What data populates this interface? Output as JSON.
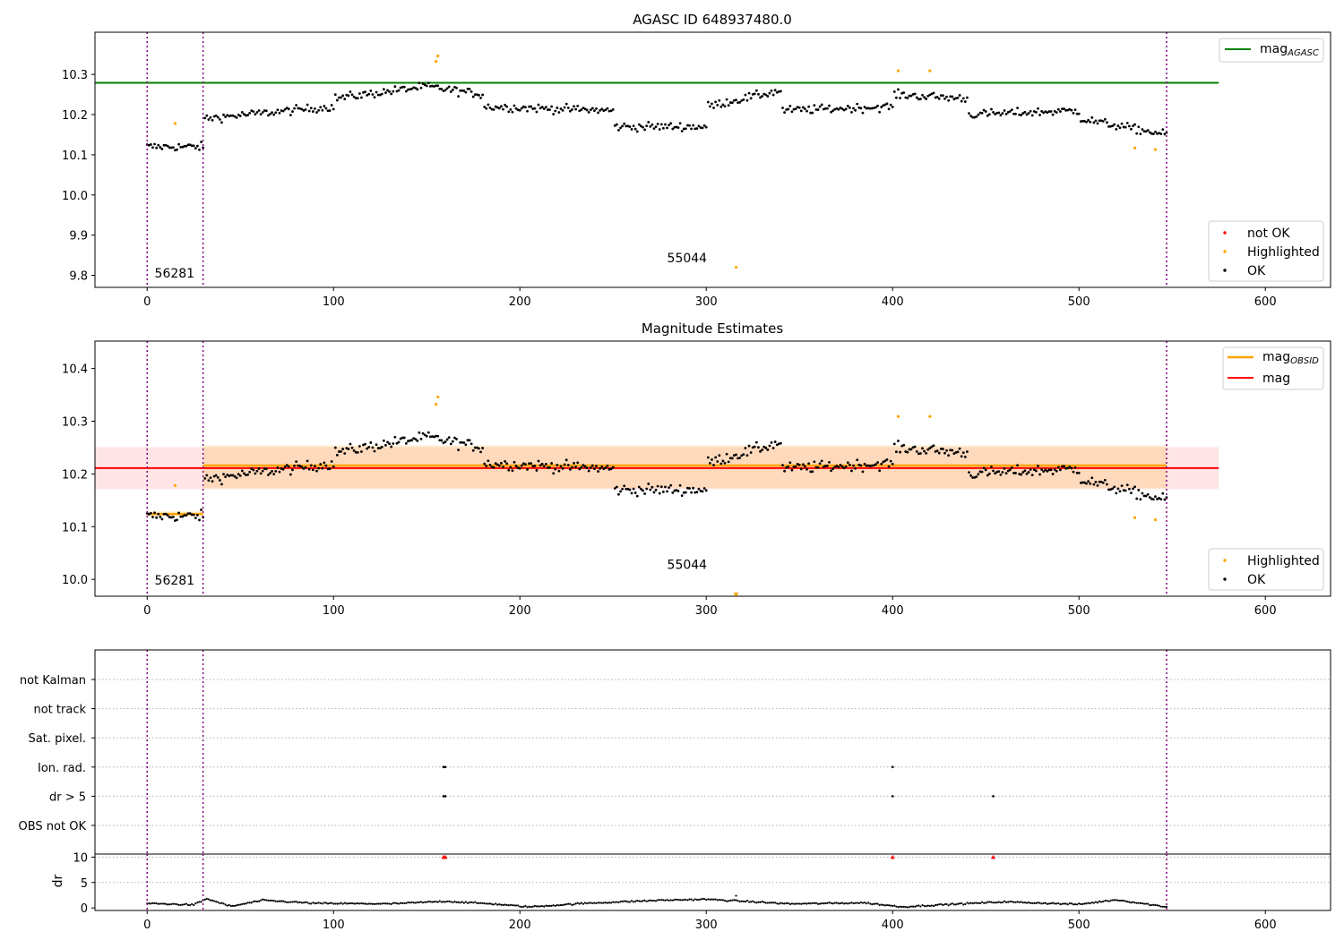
{
  "chart_data": [
    {
      "type": "scatter",
      "title": "AGASC ID 648937480.0",
      "xlabel": "",
      "ylabel": "",
      "xlim": [
        -28,
        635
      ],
      "ylim": [
        9.77,
        10.405
      ],
      "xticks": [
        0,
        100,
        200,
        300,
        400,
        500,
        600
      ],
      "yticks": [
        9.8,
        9.9,
        10.0,
        10.1,
        10.2,
        10.3
      ],
      "ytick_labels": [
        "9.8",
        "9.9",
        "10.0",
        "10.1",
        "10.2",
        "10.3"
      ],
      "obs_boundaries": [
        0,
        30,
        547
      ],
      "obs_labels": [
        {
          "text": "56281",
          "x": 4,
          "y": 9.795
        },
        {
          "text": "55044",
          "x": 279,
          "y": 9.832
        }
      ],
      "reference_lines": [
        {
          "name": "mag_AGASC",
          "y": 10.279,
          "x": [
            -28,
            575
          ],
          "color": "#008000"
        }
      ],
      "legend_top": [
        {
          "label": "mag",
          "sub": "AGASC",
          "color": "#008000",
          "kind": "line"
        }
      ],
      "legend_bottom": [
        {
          "label": "not OK",
          "color": "#ff0000",
          "kind": "dot"
        },
        {
          "label": "Highlighted",
          "color": "#ffa500",
          "kind": "dot"
        },
        {
          "label": "OK",
          "color": "#000000",
          "kind": "dot"
        }
      ],
      "highlighted_points": [
        [
          15,
          10.178
        ],
        [
          155,
          10.332
        ],
        [
          156,
          10.346
        ],
        [
          316,
          9.82
        ],
        [
          403,
          10.309
        ],
        [
          420,
          10.309
        ],
        [
          530,
          10.117
        ],
        [
          541,
          10.113
        ]
      ],
      "series_ok": {
        "x_start": 0,
        "x_end": 547,
        "segments": [
          {
            "x": [
              0,
              30
            ],
            "level": [
              10.12,
              10.12
            ]
          },
          {
            "x": [
              30,
              100
            ],
            "level": [
              10.19,
              10.22
            ]
          },
          {
            "x": [
              100,
              150
            ],
            "level": [
              10.24,
              10.27
            ]
          },
          {
            "x": [
              150,
              180
            ],
            "level": [
              10.27,
              10.25
            ]
          },
          {
            "x": [
              180,
              250
            ],
            "level": [
              10.22,
              10.21
            ]
          },
          {
            "x": [
              250,
              300
            ],
            "level": [
              10.17,
              10.17
            ]
          },
          {
            "x": [
              300,
              340
            ],
            "level": [
              10.22,
              10.26
            ]
          },
          {
            "x": [
              340,
              400
            ],
            "level": [
              10.21,
              10.22
            ]
          },
          {
            "x": [
              400,
              440
            ],
            "level": [
              10.25,
              10.24
            ]
          },
          {
            "x": [
              440,
              500
            ],
            "level": [
              10.2,
              10.21
            ]
          },
          {
            "x": [
              500,
              547
            ],
            "level": [
              10.19,
              10.15
            ]
          }
        ]
      }
    },
    {
      "type": "scatter",
      "title": "Magnitude Estimates",
      "xlabel": "",
      "ylabel": "",
      "xlim": [
        -28,
        635
      ],
      "ylim": [
        9.968,
        10.452
      ],
      "xticks": [
        0,
        100,
        200,
        300,
        400,
        500,
        600
      ],
      "yticks": [
        10.0,
        10.1,
        10.2,
        10.3,
        10.4
      ],
      "ytick_labels": [
        "10.0",
        "10.1",
        "10.2",
        "10.3",
        "10.4"
      ],
      "obs_boundaries": [
        0,
        30,
        547
      ],
      "obs_labels": [
        {
          "text": "56281",
          "x": 4,
          "y": 9.99
        },
        {
          "text": "55044",
          "x": 279,
          "y": 10.02
        }
      ],
      "mag": 10.211,
      "mag_band": [
        10.171,
        10.251
      ],
      "mag_band_x": [
        -28,
        575
      ],
      "mag_obsid": [
        {
          "x": [
            0,
            30
          ],
          "y": 10.124,
          "band": [
            10.119,
            10.129
          ]
        },
        {
          "x": [
            30,
            547
          ],
          "y": 10.216,
          "band": [
            10.173,
            10.254
          ]
        }
      ],
      "legend_top": [
        {
          "label": "mag",
          "sub": "OBSID",
          "color": "#ffa500",
          "kind": "line"
        },
        {
          "label": "mag",
          "sub": "",
          "color": "#ff0000",
          "kind": "line"
        }
      ],
      "legend_bottom": [
        {
          "label": "Highlighted",
          "color": "#ffa500",
          "kind": "dot"
        },
        {
          "label": "OK",
          "color": "#000000",
          "kind": "dot"
        }
      ],
      "highlighted_points": [
        [
          15,
          10.178
        ],
        [
          155,
          10.332
        ],
        [
          156,
          10.346
        ],
        [
          403,
          10.309
        ],
        [
          420,
          10.309
        ],
        [
          530,
          10.117
        ],
        [
          541,
          10.113
        ]
      ],
      "offscale_markers": [
        [
          316,
          9.97
        ]
      ]
    },
    {
      "type": "scatter",
      "title": "",
      "xlabel": "",
      "ylabel": "",
      "xlim": [
        -28,
        635
      ],
      "obs_boundaries": [
        0,
        30,
        547
      ],
      "flag_rows": [
        "not Kalman",
        "not track",
        "Sat. pixel.",
        "Ion. rad.",
        "dr > 5",
        "OBS not OK"
      ],
      "flag_points": [
        {
          "row": "Ion. rad.",
          "x": [
            159,
            160,
            400
          ]
        },
        {
          "row": "dr > 5",
          "x": [
            159,
            160,
            400,
            454
          ]
        }
      ]
    },
    {
      "type": "scatter",
      "title": "",
      "xlabel": "",
      "ylabel": "dr",
      "xlim": [
        -28,
        635
      ],
      "ylim": [
        -0.5,
        10.6
      ],
      "xticks": [
        0,
        100,
        200,
        300,
        400,
        500,
        600
      ],
      "yticks": [
        0,
        5,
        10
      ],
      "ytick_labels": [
        "0",
        "5",
        "10"
      ],
      "obs_boundaries": [
        0,
        30,
        547
      ],
      "clipped_markers": [
        [
          159,
          10
        ],
        [
          160,
          10
        ],
        [
          400,
          10
        ],
        [
          454,
          10
        ]
      ],
      "outliers": [
        [
          316,
          2.4
        ]
      ],
      "dr_profile": [
        [
          0,
          0.9
        ],
        [
          25,
          0.6
        ],
        [
          32,
          1.8
        ],
        [
          45,
          0.3
        ],
        [
          62,
          1.5
        ],
        [
          90,
          0.9
        ],
        [
          130,
          0.8
        ],
        [
          160,
          1.3
        ],
        [
          185,
          0.8
        ],
        [
          205,
          0.2
        ],
        [
          235,
          0.9
        ],
        [
          275,
          1.5
        ],
        [
          300,
          1.7
        ],
        [
          345,
          0.8
        ],
        [
          385,
          1.0
        ],
        [
          405,
          0.2
        ],
        [
          425,
          0.6
        ],
        [
          460,
          1.2
        ],
        [
          500,
          0.7
        ],
        [
          520,
          1.6
        ],
        [
          547,
          0.2
        ]
      ]
    }
  ]
}
